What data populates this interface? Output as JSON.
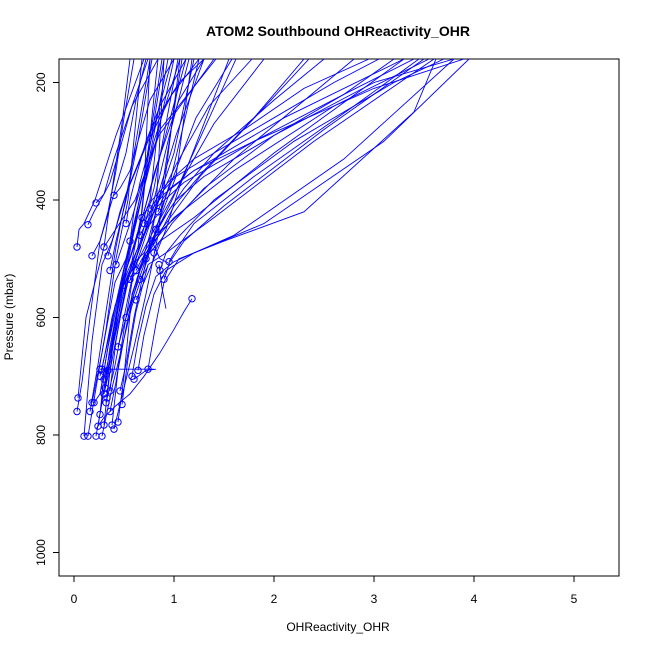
{
  "chart_data": {
    "type": "line",
    "title": "ATOM2 Southbound OHReactivity_OHR",
    "xlabel": "OHReactivity_OHR",
    "ylabel": "Pressure (mbar)",
    "xlim": [
      -0.15,
      5.45
    ],
    "ylim": [
      1040,
      160
    ],
    "y_reversed": true,
    "grid": false,
    "x_ticks": [
      0,
      1,
      2,
      3,
      4,
      5
    ],
    "x_tick_labels": [
      "0",
      "1",
      "2",
      "3",
      "4",
      "5"
    ],
    "y_ticks": [
      200,
      400,
      600,
      800,
      1000
    ],
    "y_tick_labels": [
      "200",
      "400",
      "600",
      "800",
      "1000"
    ],
    "color": "#0000ff",
    "marker": "open-circle",
    "series": [
      {
        "x": [
          0.03,
          0.08,
          0.16,
          0.26,
          0.52,
          0.62,
          0.72
        ],
        "y": [
          760,
          710,
          600,
          470,
          320,
          230,
          160
        ]
      },
      {
        "x": [
          0.03,
          0.05,
          0.1,
          0.21,
          0.42,
          0.7
        ],
        "y": [
          480,
          450,
          440,
          400,
          290,
          160
        ]
      },
      {
        "x": [
          0.04,
          0.12,
          0.3,
          0.61,
          0.85,
          1.4
        ],
        "y": [
          737,
          600,
          480,
          400,
          290,
          160
        ]
      },
      {
        "x": [
          0.1,
          0.18,
          0.28,
          0.38,
          0.52,
          0.74,
          0.98,
          1.25
        ],
        "y": [
          802,
          640,
          510,
          470,
          390,
          300,
          220,
          160
        ]
      },
      {
        "x": [
          0.18,
          0.28,
          0.41,
          0.52,
          0.62,
          0.8,
          1.06
        ],
        "y": [
          745,
          660,
          540,
          500,
          440,
          300,
          160
        ]
      },
      {
        "x": [
          0.22,
          0.28,
          0.36,
          0.48,
          0.62,
          0.81,
          1.05,
          1.3
        ],
        "y": [
          802,
          745,
          650,
          540,
          470,
          350,
          230,
          160
        ]
      },
      {
        "x": [
          0.26,
          0.31,
          0.41,
          0.54,
          0.72,
          0.86,
          1.22,
          1.58
        ],
        "y": [
          765,
          680,
          580,
          520,
          450,
          420,
          260,
          160
        ]
      },
      {
        "x": [
          0.3,
          0.35,
          0.45,
          0.55,
          0.68,
          0.82,
          1.02,
          1.35,
          1.78
        ],
        "y": [
          783,
          700,
          610,
          530,
          470,
          410,
          340,
          240,
          160
        ]
      },
      {
        "x": [
          0.33,
          0.38,
          0.46,
          0.58,
          0.7,
          0.82,
          0.98,
          1.62
        ],
        "y": [
          737,
          660,
          560,
          510,
          490,
          455,
          400,
          160
        ]
      },
      {
        "x": [
          0.36,
          0.42,
          0.52,
          0.64,
          0.78,
          0.92,
          1.26,
          2.35
        ],
        "y": [
          725,
          640,
          545,
          520,
          470,
          440,
          360,
          160
        ]
      },
      {
        "x": [
          0.38,
          0.44,
          0.54,
          0.66,
          0.82,
          1.08,
          1.6,
          2.8
        ],
        "y": [
          783,
          690,
          600,
          520,
          460,
          420,
          330,
          160
        ]
      },
      {
        "x": [
          0.44,
          0.5,
          0.58,
          0.7,
          0.86,
          1.2,
          2.0,
          3.3
        ],
        "y": [
          778,
          700,
          560,
          500,
          470,
          430,
          320,
          160
        ]
      },
      {
        "x": [
          0.48,
          0.54,
          0.62,
          0.74,
          0.92,
          1.4,
          2.4,
          3.6
        ],
        "y": [
          748,
          670,
          590,
          510,
          490,
          430,
          300,
          160
        ]
      },
      {
        "x": [
          0.58,
          0.64,
          0.72,
          0.82,
          1.0,
          1.6,
          2.7,
          3.8
        ],
        "y": [
          700,
          640,
          580,
          530,
          505,
          460,
          330,
          160
        ]
      },
      {
        "x": [
          0.64,
          0.7,
          0.8,
          0.92,
          1.2,
          1.9,
          3.1,
          3.95
        ],
        "y": [
          690,
          630,
          560,
          520,
          490,
          440,
          300,
          160
        ]
      },
      {
        "x": [
          0.74,
          0.82,
          0.9,
          1.05,
          1.5,
          2.3,
          3.4,
          3.62
        ],
        "y": [
          688,
          610,
          540,
          500,
          470,
          420,
          250,
          160
        ]
      },
      {
        "x": [
          0.28,
          0.38,
          0.5,
          0.62,
          0.76,
          0.86
        ],
        "y": [
          688,
          600,
          528,
          470,
          400,
          243
        ]
      },
      {
        "x": [
          0.31,
          0.4,
          0.52,
          0.64,
          0.7,
          0.76
        ],
        "y": [
          720,
          630,
          540,
          480,
          380,
          160
        ]
      },
      {
        "x": [
          0.22,
          0.3,
          0.36,
          0.48,
          0.58,
          0.84
        ],
        "y": [
          405,
          390,
          370,
          300,
          240,
          160
        ]
      },
      {
        "x": [
          0.14,
          0.2,
          0.3,
          0.4,
          0.56,
          0.74
        ],
        "y": [
          442,
          420,
          390,
          330,
          250,
          160
        ]
      },
      {
        "x": [
          0.4,
          0.46,
          0.56,
          0.64,
          0.76,
          1.0
        ],
        "y": [
          392,
          380,
          350,
          300,
          230,
          160
        ]
      },
      {
        "x": [
          0.52,
          0.56,
          0.62,
          0.72,
          0.86,
          1.12
        ],
        "y": [
          440,
          400,
          360,
          300,
          240,
          160
        ]
      },
      {
        "x": [
          0.56,
          0.6,
          0.66,
          0.74,
          0.84,
          0.98
        ],
        "y": [
          470,
          420,
          370,
          320,
          250,
          160
        ]
      },
      {
        "x": [
          0.18,
          0.26,
          0.34,
          0.42,
          0.5,
          0.6
        ],
        "y": [
          495,
          470,
          420,
          350,
          260,
          160
        ]
      },
      {
        "x": [
          0.3,
          0.34,
          0.4,
          0.48,
          0.56
        ],
        "y": [
          480,
          430,
          360,
          270,
          160
        ]
      },
      {
        "x": [
          0.34,
          0.4,
          0.46,
          0.54,
          0.66,
          0.8,
          1.05,
          1.3
        ],
        "y": [
          495,
          460,
          420,
          380,
          330,
          270,
          200,
          160
        ]
      },
      {
        "x": [
          0.84,
          0.88,
          0.96,
          1.2,
          1.8,
          2.7,
          3.4
        ],
        "y": [
          420,
          400,
          380,
          350,
          300,
          220,
          160
        ]
      },
      {
        "x": [
          0.86,
          0.92,
          1.06,
          1.4,
          2.2,
          3.2,
          3.7
        ],
        "y": [
          520,
          490,
          460,
          400,
          300,
          200,
          160
        ]
      },
      {
        "x": [
          0.9,
          0.96,
          1.1,
          1.5,
          2.5,
          3.5
        ],
        "y": [
          535,
          505,
          470,
          410,
          280,
          160
        ]
      },
      {
        "x": [
          0.95,
          1.02,
          1.2,
          1.8,
          2.8,
          3.45
        ],
        "y": [
          505,
          485,
          440,
          360,
          240,
          160
        ]
      },
      {
        "x": [
          0.8,
          0.86,
          0.98,
          1.3,
          2.0,
          3.0,
          3.8
        ],
        "y": [
          490,
          470,
          440,
          380,
          290,
          200,
          160
        ]
      },
      {
        "x": [
          0.62,
          0.68,
          0.8,
          1.0,
          1.6,
          2.6,
          3.55
        ],
        "y": [
          520,
          500,
          470,
          430,
          350,
          240,
          160
        ]
      },
      {
        "x": [
          0.66,
          0.72,
          0.84,
          1.1,
          1.8,
          3.0,
          3.9
        ],
        "y": [
          460,
          440,
          410,
          370,
          300,
          210,
          160
        ]
      },
      {
        "x": [
          0.7,
          0.76,
          0.9,
          1.2,
          2.1,
          3.3
        ],
        "y": [
          440,
          420,
          390,
          350,
          260,
          160
        ]
      },
      {
        "x": [
          0.68,
          0.78,
          0.94,
          1.2,
          1.7,
          2.3,
          2.95
        ],
        "y": [
          430,
          400,
          370,
          330,
          280,
          210,
          160
        ]
      },
      {
        "x": [
          0.76,
          0.86,
          1.02,
          1.4,
          2.0,
          2.6,
          3.05
        ],
        "y": [
          415,
          390,
          360,
          320,
          260,
          200,
          160
        ]
      },
      {
        "x": [
          0.2,
          0.26,
          0.34,
          0.5,
          0.64,
          0.82,
          1.0
        ],
        "y": [
          745,
          730,
          650,
          520,
          420,
          300,
          160
        ]
      },
      {
        "x": [
          0.3,
          0.34,
          0.4,
          0.52,
          0.7,
          0.9,
          1.12
        ],
        "y": [
          730,
          700,
          620,
          520,
          420,
          300,
          160
        ]
      },
      {
        "x": [
          0.36,
          0.42,
          0.5,
          0.6,
          0.76,
          1.0,
          1.2
        ],
        "y": [
          760,
          710,
          620,
          520,
          440,
          320,
          160
        ]
      },
      {
        "x": [
          0.32,
          0.4,
          0.5,
          0.62,
          0.8,
          1.04
        ],
        "y": [
          745,
          690,
          600,
          500,
          380,
          160
        ]
      },
      {
        "x": [
          0.34,
          0.4,
          0.48,
          0.58,
          0.72,
          0.94
        ],
        "y": [
          690,
          640,
          560,
          470,
          360,
          160
        ]
      },
      {
        "x": [
          0.3,
          0.36,
          0.44,
          0.56,
          0.7,
          0.88
        ],
        "y": [
          705,
          660,
          580,
          480,
          360,
          160
        ]
      },
      {
        "x": [
          0.46,
          0.52,
          0.6,
          0.7,
          0.82,
          0.9
        ],
        "y": [
          725,
          680,
          600,
          520,
          420,
          160
        ]
      },
      {
        "x": [
          0.62,
          0.7,
          0.8,
          0.92,
          1.05,
          1.55
        ],
        "y": [
          570,
          540,
          500,
          450,
          380,
          160
        ]
      },
      {
        "x": [
          0.5,
          0.58,
          0.68,
          0.8,
          0.94,
          1.15
        ],
        "y": [
          545,
          520,
          470,
          400,
          300,
          160
        ]
      },
      {
        "x": [
          0.6,
          0.66,
          0.74,
          0.86,
          1.02,
          1.3
        ],
        "y": [
          510,
          480,
          440,
          380,
          290,
          160
        ]
      },
      {
        "x": [
          0.28,
          0.38,
          0.48,
          0.58,
          0.7,
          0.84,
          1.02,
          1.18
        ],
        "y": [
          802,
          720,
          650,
          580,
          520,
          440,
          360,
          160
        ]
      },
      {
        "x": [
          0.24,
          0.32,
          0.44,
          0.56,
          0.68,
          0.84
        ],
        "y": [
          785,
          700,
          610,
          520,
          420,
          160
        ]
      },
      {
        "x": [
          0.4,
          0.5,
          0.6,
          0.72,
          0.84,
          1.06
        ],
        "y": [
          790,
          720,
          650,
          560,
          460,
          160
        ]
      },
      {
        "x": [
          0.14,
          0.22,
          0.32,
          0.42,
          0.54,
          0.68
        ],
        "y": [
          802,
          720,
          620,
          500,
          400,
          160
        ]
      },
      {
        "x": [
          0.16,
          0.24,
          0.32,
          0.42,
          0.56,
          0.76
        ],
        "y": [
          760,
          680,
          590,
          480,
          360,
          160
        ]
      },
      {
        "x": [
          0.26,
          0.34,
          0.44,
          0.56,
          0.72,
          0.9
        ],
        "y": [
          700,
          640,
          560,
          470,
          350,
          160
        ]
      },
      {
        "x": [
          0.44,
          0.52,
          0.62,
          0.74,
          0.88,
          1.08
        ],
        "y": [
          650,
          600,
          540,
          470,
          380,
          160
        ]
      },
      {
        "x": [
          0.52,
          0.6,
          0.7,
          0.82,
          0.96,
          1.25
        ],
        "y": [
          600,
          560,
          510,
          450,
          370,
          160
        ]
      },
      {
        "x": [
          0.36,
          0.42,
          0.52,
          0.64,
          0.78
        ],
        "y": [
          520,
          470,
          400,
          300,
          160
        ]
      },
      {
        "x": [
          0.42,
          0.48,
          0.58,
          0.7,
          0.86,
          1.42
        ],
        "y": [
          510,
          480,
          430,
          360,
          280,
          160
        ]
      },
      {
        "x": [
          0.78,
          0.84,
          0.94,
          1.1,
          1.4,
          2.0,
          2.5
        ],
        "y": [
          470,
          450,
          420,
          380,
          320,
          230,
          160
        ]
      },
      {
        "x": [
          0.82,
          0.9,
          1.02,
          1.3,
          1.9,
          2.7,
          3.2
        ],
        "y": [
          450,
          430,
          400,
          360,
          300,
          220,
          160
        ]
      },
      {
        "x": [
          0.56,
          0.62,
          0.74,
          0.9,
          1.1,
          1.4,
          1.9
        ],
        "y": [
          535,
          510,
          470,
          420,
          360,
          270,
          160
        ]
      },
      {
        "x": [
          0.72,
          0.78,
          0.88,
          1.0,
          1.3,
          1.8,
          2.3
        ],
        "y": [
          500,
          480,
          450,
          410,
          350,
          260,
          160
        ]
      },
      {
        "x": [
          0.26,
          0.42,
          0.62,
          0.8
        ],
        "y": [
          688,
          688,
          688,
          688
        ]
      },
      {
        "x": [
          0.6,
          0.72,
          0.82
        ],
        "y": [
          705,
          690,
          688
        ]
      },
      {
        "x": [
          0.78,
          0.86,
          0.95
        ],
        "y": [
          470,
          500,
          508
        ]
      },
      {
        "x": [
          0.85,
          0.88,
          0.92
        ],
        "y": [
          510,
          550,
          585
        ]
      },
      {
        "x": [
          0.66,
          0.7,
          0.74
        ],
        "y": [
          535,
          525,
          512
        ]
      },
      {
        "x": [
          1.18,
          1.1,
          1.0,
          0.86,
          0.7,
          0.56,
          0.42,
          0.3,
          0.22
        ],
        "y": [
          568,
          590,
          620,
          660,
          700,
          730,
          750,
          770,
          790
        ]
      }
    ]
  }
}
